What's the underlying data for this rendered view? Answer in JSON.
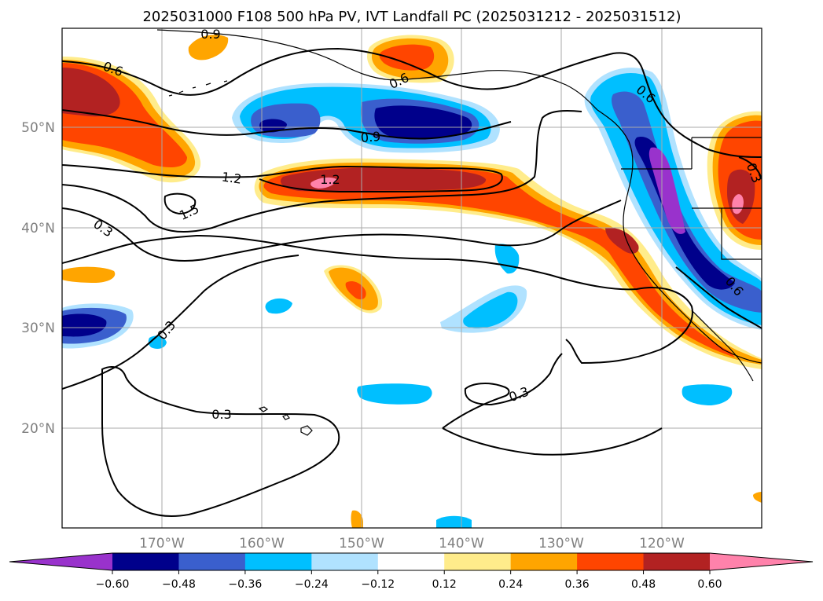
{
  "title": "2025031000 F108 500 hPa PV, IVT Landfall PC (2025031212 - 2025031512)",
  "longitude_labels": [
    "170°W",
    "160°W",
    "150°W",
    "140°W",
    "130°W",
    "120°W"
  ],
  "latitude_labels": [
    "20°N",
    "30°N",
    "40°N",
    "50°N"
  ],
  "colorbar": {
    "ticks": [
      "−0.60",
      "−0.48",
      "−0.36",
      "−0.24",
      "−0.12",
      "0.12",
      "0.24",
      "0.36",
      "0.48",
      "0.60"
    ],
    "colors": [
      "#9932cc",
      "#00008b",
      "#3a5fcd",
      "#00bfff",
      "#b0e2ff",
      "#ffffff",
      "#ffec8b",
      "#ffa500",
      "#ff4500",
      "#b22222",
      "#ff82ab"
    ]
  },
  "contour_labels": {
    "c09_top": "0.9",
    "c06_left": "0.6",
    "c06_mid": "0.6",
    "c06_right": "0.6",
    "c09_mid": "0.9",
    "c12_left": "1.2",
    "c12_mid": "1.2",
    "c15": "1.5",
    "c03_left": "0.3",
    "c03_sw": "0.3",
    "c03_bottom": "0.3",
    "c03_right": "0.3",
    "c06_coast": "0.6",
    "c03_edge": "0.3"
  }
}
